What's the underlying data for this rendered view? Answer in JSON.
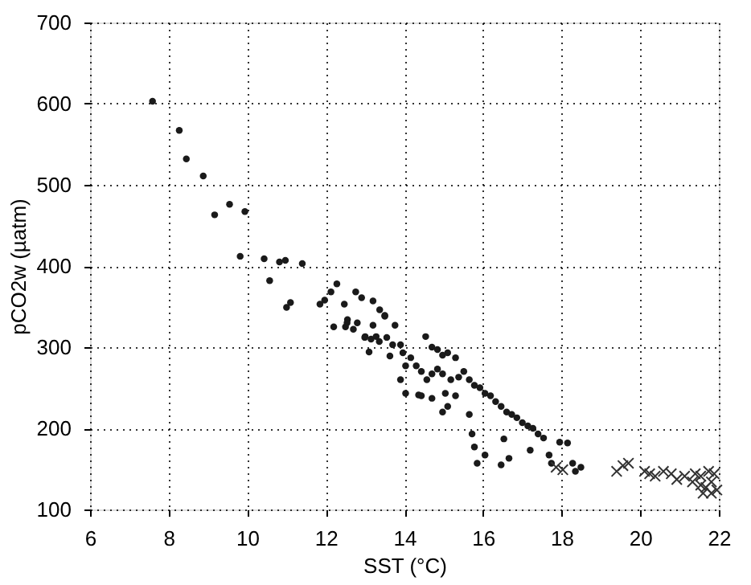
{
  "chart_data": {
    "type": "scatter",
    "xlabel": "SST (°C)",
    "ylabel": "pCO2w (µatm)",
    "xlim": [
      6,
      22
    ],
    "xticks": [
      6,
      8,
      10,
      12,
      14,
      16,
      18,
      20,
      22
    ],
    "ylim": [
      100,
      700
    ],
    "yticks": [
      100,
      200,
      300,
      400,
      500,
      600,
      700
    ],
    "grid": true,
    "legend": false,
    "series": [
      {
        "color": "#1a1a1a",
        "marker": "circle",
        "x": [
          7.59,
          8.27,
          8.45,
          8.88,
          9.17,
          9.55,
          9.94,
          9.82,
          10.43,
          10.82,
          10.97,
          11.4,
          10.57,
          11.0,
          11.1,
          11.85,
          11.97,
          12.13,
          12.28,
          12.2,
          12.47,
          12.5,
          12.76,
          12.91,
          12.55,
          12.8,
          12.7,
          13.2,
          13.37,
          13.5,
          13.2,
          12.99,
          13.1,
          13.36,
          13.55,
          13.63,
          13.76,
          13.5,
          12.54,
          13.0,
          13.15,
          13.28,
          13.7,
          13.9,
          13.96,
          14.03,
          13.9,
          14.54,
          14.7,
          14.84,
          14.97,
          15.1,
          15.3,
          14.16,
          14.3,
          14.43,
          14.57,
          14.7,
          14.84,
          14.97,
          15.18,
          15.38,
          15.51,
          15.65,
          15.78,
          15.92,
          16.05,
          16.19,
          16.32,
          16.46,
          16.6,
          16.73,
          16.86,
          17.0,
          17.14,
          17.27,
          17.4,
          17.54,
          14.03,
          14.36,
          14.7,
          14.97,
          15.1,
          15.3,
          15.65,
          14.43,
          15.04,
          15.72,
          15.78,
          16.05,
          15.85,
          16.53,
          16.46,
          16.66,
          17.2,
          17.68,
          17.95,
          18.15,
          17.74,
          18.28,
          18.49,
          18.35
        ],
        "values": [
          603,
          567,
          532,
          511,
          463,
          476,
          467,
          412,
          409,
          405,
          407,
          403,
          382,
          349,
          355,
          353,
          358,
          368,
          378,
          325,
          353,
          325,
          368,
          361,
          334,
          330,
          322,
          357,
          346,
          338,
          327,
          312,
          294,
          307,
          312,
          289,
          327,
          339,
          330,
          313,
          310,
          313,
          303,
          303,
          293,
          277,
          260,
          313,
          300,
          297,
          290,
          293,
          287,
          287,
          277,
          270,
          260,
          267,
          273,
          267,
          260,
          263,
          270,
          260,
          253,
          250,
          243,
          240,
          233,
          227,
          220,
          217,
          213,
          207,
          203,
          200,
          193,
          188,
          243,
          241,
          237,
          220,
          227,
          240,
          217,
          240,
          243,
          193,
          177,
          167,
          157,
          187,
          155,
          163,
          173,
          167,
          183,
          182,
          157,
          157,
          152,
          147
        ]
      },
      {
        "color": "#333333",
        "marker": "cross",
        "x": [
          17.86,
          18.03,
          19.4,
          19.56,
          19.7,
          20.11,
          20.24,
          20.38,
          20.59,
          20.79,
          20.93,
          21.13,
          21.33,
          21.54,
          21.67,
          21.81,
          21.88,
          21.74,
          21.54,
          21.4,
          21.95,
          21.6,
          21.81
        ],
        "values": [
          152,
          149,
          147,
          154,
          157,
          147,
          144,
          141,
          147,
          144,
          137,
          141,
          134,
          130,
          127,
          134,
          144,
          147,
          141,
          144,
          124,
          120,
          120
        ]
      }
    ]
  }
}
